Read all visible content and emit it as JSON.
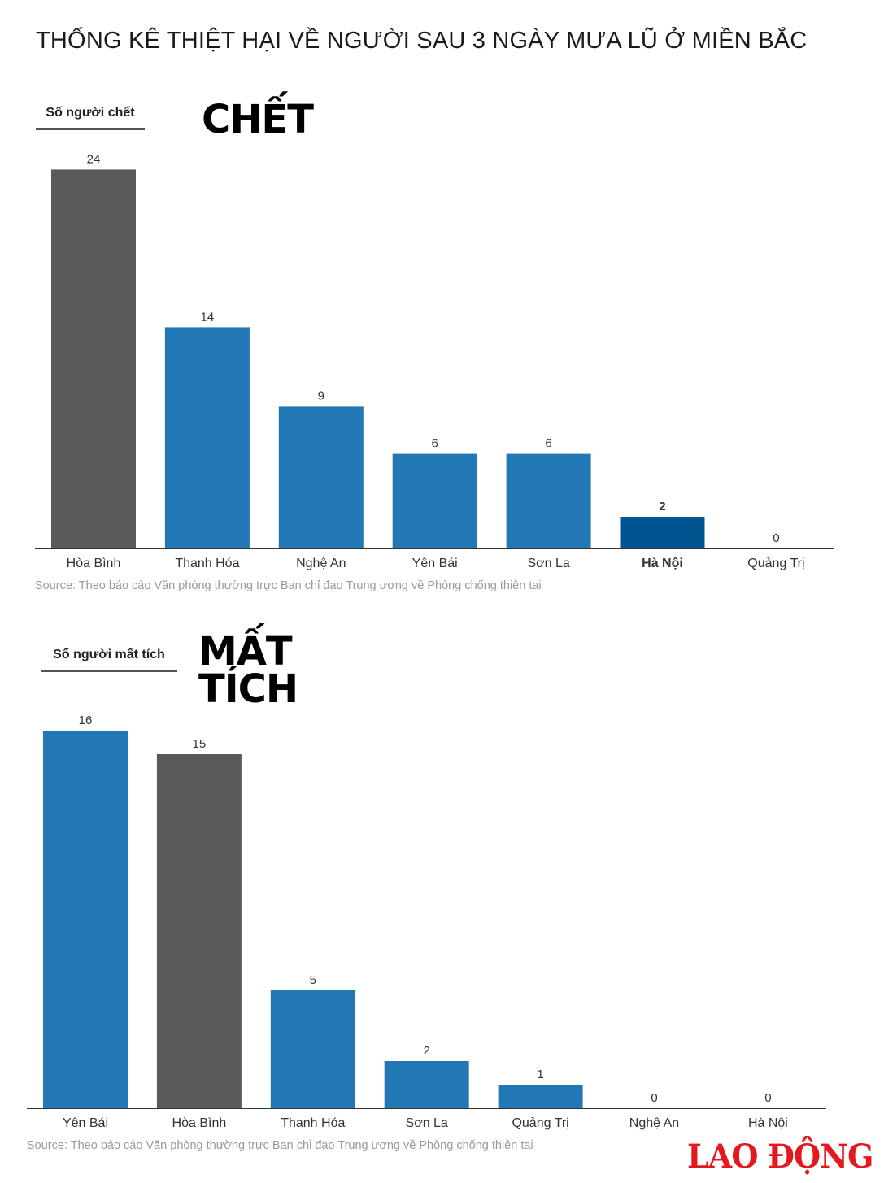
{
  "title": "THỐNG KÊ THIỆT HẠI VỀ NGƯỜI SAU 3 NGÀY MƯA LŨ Ở MIỀN BẮC",
  "logo_text": "LAO ĐỘNG",
  "sections": [
    {
      "label": "Số người chết",
      "word_lines": [
        "CHẾT"
      ],
      "source": "Source: Theo báo cáo Văn phòng thường trực Ban chỉ đạo Trung ương về Phòng chống thiên tai"
    },
    {
      "label": "Số người mất tích",
      "word_lines": [
        "MẤT",
        "TÍCH"
      ],
      "source": "Source: Theo báo cáo Văn phòng thường trực Ban chỉ đạo Trung ương về Phòng chống thiên tai"
    }
  ],
  "colors": {
    "blue": "#2278b5",
    "gray": "#5a5a5a",
    "dark_blue": "#005590"
  },
  "chart_data": [
    {
      "type": "bar",
      "categories": [
        "Hòa Bình",
        "Thanh Hóa",
        "Nghệ An",
        "Yên Bái",
        "Sơn La",
        "Hà Nội",
        "Quảng Trị"
      ],
      "values": [
        24,
        14,
        9,
        6,
        6,
        2,
        0
      ],
      "bar_colors": [
        "gray",
        "blue",
        "blue",
        "blue",
        "blue",
        "dark_blue",
        "blue"
      ],
      "bold_category": "Hà Nội"
    },
    {
      "type": "bar",
      "categories": [
        "Yên Bái",
        "Hòa Bình",
        "Thanh Hóa",
        "Sơn La",
        "Quảng Trị",
        "Nghệ An",
        "Hà Nội"
      ],
      "values": [
        16,
        15,
        5,
        2,
        1,
        0,
        0
      ],
      "bar_colors": [
        "blue",
        "gray",
        "blue",
        "blue",
        "blue",
        "blue",
        "blue"
      ],
      "bold_category": ""
    }
  ]
}
